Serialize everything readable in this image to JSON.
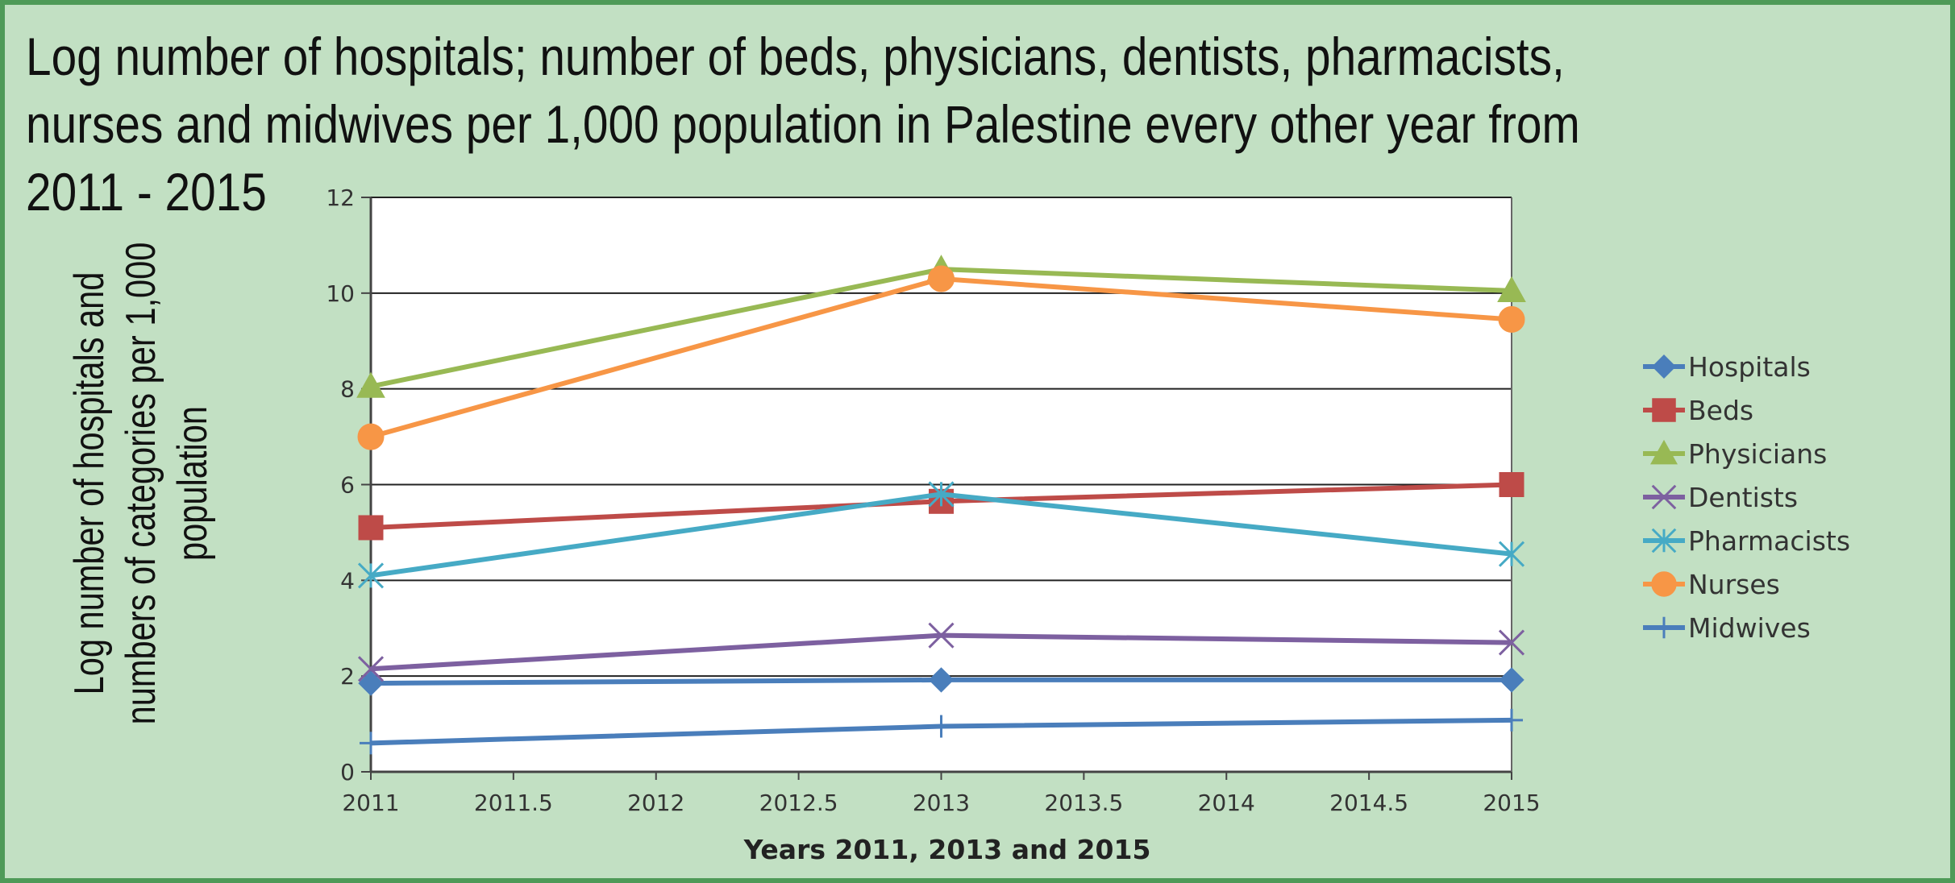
{
  "chart_data": {
    "type": "line",
    "title": "Log number of hospitals; number of beds, physicians, dentists, pharmacists, nurses and midwives per 1,000 population in Palestine every other year from 2011 - 2015",
    "xlabel": "Years 2011, 2013 and 2015",
    "ylabel": "Log number of hospitals and numbers of categories per 1,000 population",
    "ylabel_lines": [
      "Log number of hospitals and",
      "numbers of categories per 1,000",
      "population"
    ],
    "xlim": [
      2011,
      2015
    ],
    "ylim": [
      0,
      12
    ],
    "x_ticks": [
      "2011",
      "2011.5",
      "2012",
      "2012.5",
      "2013",
      "2013.5",
      "2014",
      "2014.5",
      "2015"
    ],
    "y_ticks": [
      "0",
      "2",
      "4",
      "6",
      "8",
      "10",
      "12"
    ],
    "grid": "horizontal",
    "legend_position": "right",
    "x": [
      2011,
      2013,
      2015
    ],
    "series": [
      {
        "name": "Hospitals",
        "values": [
          1.85,
          1.92,
          1.92
        ],
        "color": "#4a7ebb",
        "marker": "diamond"
      },
      {
        "name": "Beds",
        "values": [
          5.1,
          5.65,
          6.0
        ],
        "color": "#be4b48",
        "marker": "square"
      },
      {
        "name": "Physicians",
        "values": [
          8.05,
          10.5,
          10.05
        ],
        "color": "#98b954",
        "marker": "triangle"
      },
      {
        "name": "Dentists",
        "values": [
          2.15,
          2.85,
          2.7
        ],
        "color": "#7d60a0",
        "marker": "x"
      },
      {
        "name": "Pharmacists",
        "values": [
          4.1,
          5.8,
          4.55
        ],
        "color": "#46aac5",
        "marker": "star"
      },
      {
        "name": "Nurses",
        "values": [
          7.0,
          10.3,
          9.45
        ],
        "color": "#f79646",
        "marker": "circle"
      },
      {
        "name": "Midwives",
        "values": [
          0.6,
          0.95,
          1.08
        ],
        "color": "#4a7ebb",
        "marker": "plus"
      }
    ]
  }
}
